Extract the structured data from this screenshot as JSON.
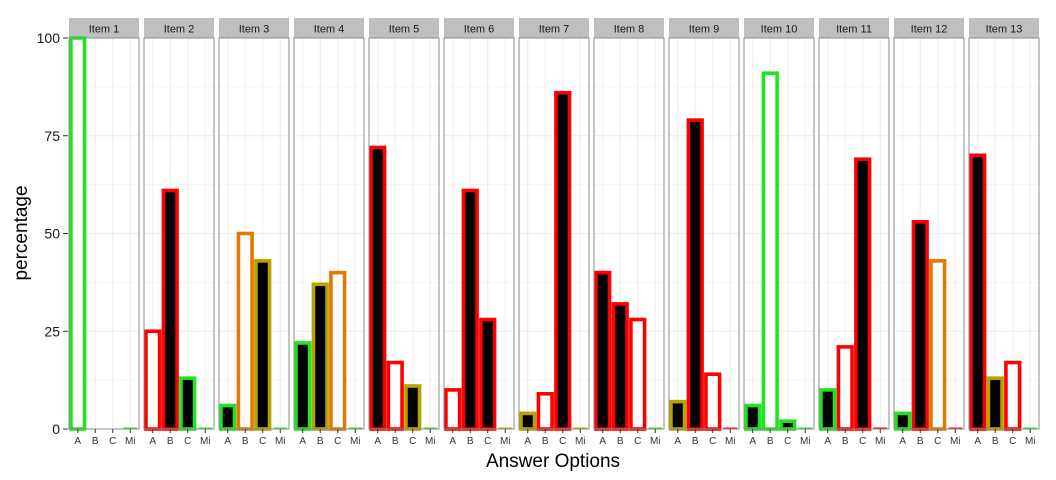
{
  "chart_data": {
    "type": "bar",
    "xlabel": "Answer Options",
    "ylabel": "percentage",
    "ylim": [
      0,
      100
    ],
    "yticks": [
      0,
      25,
      50,
      75,
      100
    ],
    "categories": [
      "A",
      "B",
      "C",
      "Mi"
    ],
    "grid": true,
    "colors": {
      "red": "#ff0000",
      "green": "#1ee61e",
      "olive": "#b8a400",
      "orange": "#e07a00",
      "black": "#000000",
      "white": "#ffffff",
      "strip": "#bfbfbf",
      "grid": "#ececec"
    },
    "facets": [
      {
        "name": "Item 1",
        "bars": [
          {
            "v": 100,
            "o": "green",
            "f": "white"
          },
          {
            "v": 0,
            "o": "white",
            "f": "white"
          },
          {
            "v": 0,
            "o": "white",
            "f": "white"
          },
          {
            "v": 0,
            "o": "green",
            "f": "white"
          }
        ]
      },
      {
        "name": "Item 2",
        "bars": [
          {
            "v": 25,
            "o": "red",
            "f": "white"
          },
          {
            "v": 61,
            "o": "red",
            "f": "black"
          },
          {
            "v": 13,
            "o": "green",
            "f": "black"
          },
          {
            "v": 0,
            "o": "green",
            "f": "white"
          }
        ]
      },
      {
        "name": "Item 3",
        "bars": [
          {
            "v": 6,
            "o": "green",
            "f": "black"
          },
          {
            "v": 50,
            "o": "orange",
            "f": "white"
          },
          {
            "v": 43,
            "o": "olive",
            "f": "black"
          },
          {
            "v": 0,
            "o": "green",
            "f": "white"
          }
        ]
      },
      {
        "name": "Item 4",
        "bars": [
          {
            "v": 22,
            "o": "green",
            "f": "black"
          },
          {
            "v": 37,
            "o": "olive",
            "f": "black"
          },
          {
            "v": 40,
            "o": "orange",
            "f": "white"
          },
          {
            "v": 0,
            "o": "green",
            "f": "white"
          }
        ]
      },
      {
        "name": "Item 5",
        "bars": [
          {
            "v": 72,
            "o": "red",
            "f": "black"
          },
          {
            "v": 17,
            "o": "red",
            "f": "white"
          },
          {
            "v": 11,
            "o": "olive",
            "f": "black"
          },
          {
            "v": 0,
            "o": "green",
            "f": "white"
          }
        ]
      },
      {
        "name": "Item 6",
        "bars": [
          {
            "v": 10,
            "o": "red",
            "f": "white"
          },
          {
            "v": 61,
            "o": "red",
            "f": "black"
          },
          {
            "v": 28,
            "o": "red",
            "f": "black"
          },
          {
            "v": 0,
            "o": "olive",
            "f": "white"
          }
        ]
      },
      {
        "name": "Item 7",
        "bars": [
          {
            "v": 4,
            "o": "olive",
            "f": "black"
          },
          {
            "v": 9,
            "o": "red",
            "f": "white"
          },
          {
            "v": 86,
            "o": "red",
            "f": "black"
          },
          {
            "v": 0,
            "o": "olive",
            "f": "white"
          }
        ]
      },
      {
        "name": "Item 8",
        "bars": [
          {
            "v": 40,
            "o": "red",
            "f": "black"
          },
          {
            "v": 32,
            "o": "red",
            "f": "black"
          },
          {
            "v": 28,
            "o": "red",
            "f": "white"
          },
          {
            "v": 0,
            "o": "green",
            "f": "white"
          }
        ]
      },
      {
        "name": "Item 9",
        "bars": [
          {
            "v": 7,
            "o": "olive",
            "f": "black"
          },
          {
            "v": 79,
            "o": "red",
            "f": "black"
          },
          {
            "v": 14,
            "o": "red",
            "f": "white"
          },
          {
            "v": 0,
            "o": "red",
            "f": "white"
          }
        ]
      },
      {
        "name": "Item 10",
        "bars": [
          {
            "v": 6,
            "o": "green",
            "f": "black"
          },
          {
            "v": 91,
            "o": "green",
            "f": "white"
          },
          {
            "v": 2,
            "o": "green",
            "f": "black"
          },
          {
            "v": 0,
            "o": "green",
            "f": "white"
          }
        ]
      },
      {
        "name": "Item 11",
        "bars": [
          {
            "v": 10,
            "o": "green",
            "f": "black"
          },
          {
            "v": 21,
            "o": "red",
            "f": "white"
          },
          {
            "v": 69,
            "o": "red",
            "f": "black"
          },
          {
            "v": 0,
            "o": "red",
            "f": "white"
          }
        ]
      },
      {
        "name": "Item 12",
        "bars": [
          {
            "v": 4,
            "o": "green",
            "f": "black"
          },
          {
            "v": 53,
            "o": "red",
            "f": "black"
          },
          {
            "v": 43,
            "o": "orange",
            "f": "white"
          },
          {
            "v": 0,
            "o": "red",
            "f": "white"
          }
        ]
      },
      {
        "name": "Item 13",
        "bars": [
          {
            "v": 70,
            "o": "red",
            "f": "black"
          },
          {
            "v": 13,
            "o": "olive",
            "f": "black"
          },
          {
            "v": 17,
            "o": "red",
            "f": "white"
          },
          {
            "v": 0,
            "o": "green",
            "f": "white"
          }
        ]
      }
    ]
  }
}
